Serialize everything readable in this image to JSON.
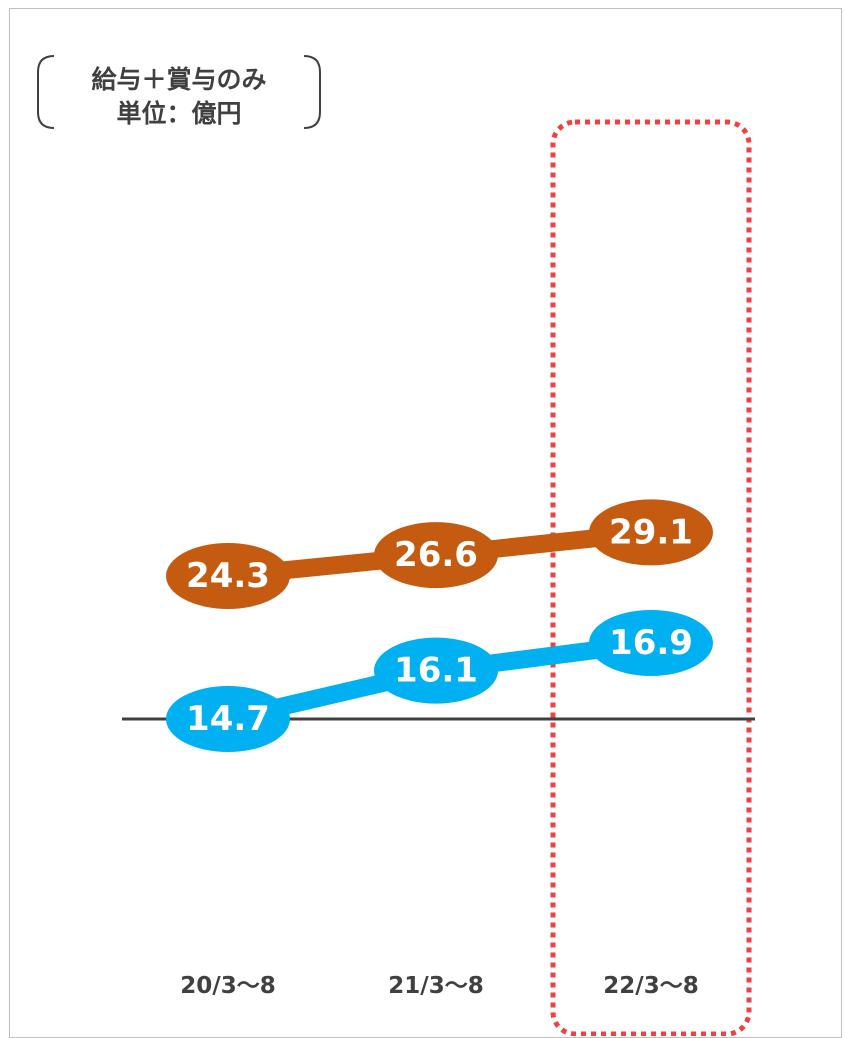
{
  "header": {
    "title_fragment": ""
  },
  "unit_note": {
    "line1": "給与＋賞与のみ",
    "line2": "単位：億円"
  },
  "colors": {
    "series_a": "#c55a11",
    "series_b": "#00b0f0",
    "highlight": "#f04040",
    "axis": "#404040"
  },
  "chart_data": {
    "type": "line",
    "categories": [
      "20/3〜8",
      "21/3〜8",
      "22/3〜8"
    ],
    "series": [
      {
        "values": [
          24.3,
          26.6,
          29.1
        ],
        "labels": [
          "24.3",
          "26.6",
          "29.1"
        ],
        "color": "#c55a11"
      },
      {
        "values": [
          14.7,
          16.1,
          16.9
        ],
        "labels": [
          "14.7",
          "16.1",
          "16.9"
        ],
        "color": "#00b0f0"
      }
    ],
    "highlight_category": "22/3〜8",
    "data_labels": true,
    "grid": false,
    "legend": "none"
  }
}
